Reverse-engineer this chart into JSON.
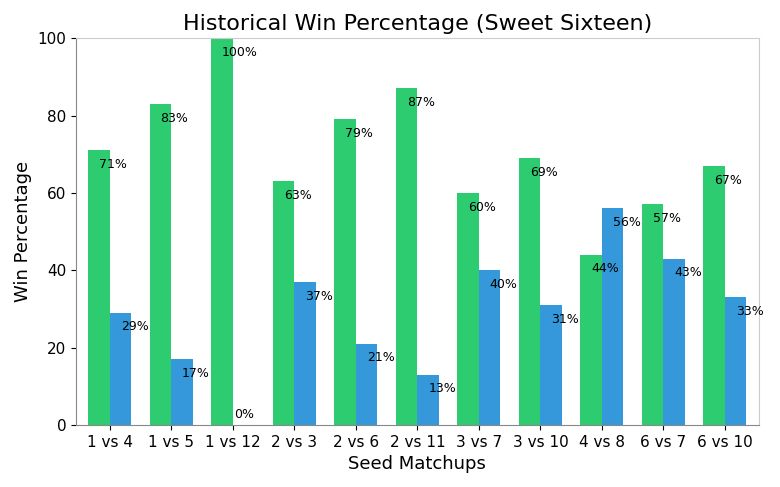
{
  "title": "Historical Win Percentage (Sweet Sixteen)",
  "xlabel": "Seed Matchups",
  "ylabel": "Win Percentage",
  "matchups": [
    "1 vs 4",
    "1 vs 5",
    "1 vs 12",
    "2 vs 3",
    "2 vs 6",
    "2 vs 11",
    "3 vs 7",
    "3 vs 10",
    "4 vs 8",
    "6 vs 7",
    "6 vs 10"
  ],
  "lower_seed_pct": [
    71,
    83,
    100,
    63,
    79,
    87,
    60,
    69,
    44,
    57,
    67
  ],
  "higher_seed_pct": [
    29,
    17,
    0,
    37,
    21,
    13,
    40,
    31,
    56,
    43,
    33
  ],
  "lower_seed_color": "#2ecc71",
  "higher_seed_color": "#3498db",
  "ylim": [
    0,
    100
  ],
  "yticks": [
    0,
    20,
    40,
    60,
    80,
    100
  ],
  "bar_width": 0.35,
  "title_fontsize": 16,
  "label_fontsize": 13,
  "tick_fontsize": 11,
  "annot_fontsize": 9,
  "background_color": "#ffffff"
}
